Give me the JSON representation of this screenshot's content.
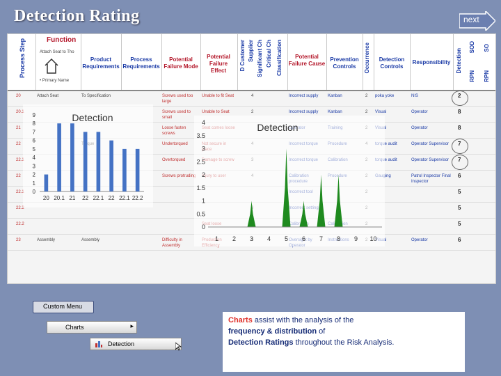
{
  "page": {
    "title": "Detection Rating",
    "next_label": "next"
  },
  "header": {
    "process_step": "Process Step",
    "function": "Function",
    "product_requirements": "Product Requirements",
    "process_requirements": "Process Requirements",
    "potential_failure_mode": "Potential Failure Mode",
    "potential_failure_effect": "Potential Failure Effect",
    "d_customer": "D Customer",
    "supplier": "Supplier",
    "significant_ch": "Significant Ch",
    "critical_ch": "Critical Ch",
    "classification": "Classification",
    "potential_failure_cause": "Potential Failure Cause",
    "prevention_controls": "Prevention Controls",
    "occurrence": "Occurrence",
    "detection_controls": "Detection Controls",
    "responsibility": "Responsibility",
    "detection": "Detection",
    "rpn": "RPN",
    "sod": "SOD",
    "so": "SO",
    "function_sample_text": "Attach Seat to Tho",
    "function_sample_sub": "• Primary Name"
  },
  "rows": [
    {
      "step": "20",
      "func": "Attach Seat",
      "fn2": "To Specification",
      "mode": "Screws used too large",
      "effect": "Unable to fit Seat",
      "sev": "4",
      "cause": "Incorrect supply",
      "prev": "Kanban",
      "occ": "2",
      "ctrl": "poka yoke",
      "resp": "NIS",
      "det": "2",
      "circled": true
    },
    {
      "step": "20.1",
      "func": "",
      "fn2": "",
      "mode": "Screws used to small",
      "effect": "Unable to Seat",
      "sev": "2",
      "cause": "Incorrect supply",
      "prev": "Kanban",
      "occ": "2",
      "ctrl": "Visual",
      "resp": "Operator",
      "det": "8",
      "circled": false
    },
    {
      "step": "21",
      "func": "",
      "fn2": "",
      "mode": "Loose fasten screws",
      "effect": "Seat comes loose",
      "sev": "",
      "cause": "Operator",
      "prev": "Training",
      "occ": "2",
      "ctrl": "Visual",
      "resp": "Operator",
      "det": "8",
      "circled": false
    },
    {
      "step": "22",
      "func": "",
      "fn2": "Torque",
      "mode": "Undertorqued",
      "effect": "Not secure in place",
      "sev": "4",
      "cause": "Incorrect torque",
      "prev": "Procedure",
      "occ": "4",
      "ctrl": "torque audit",
      "resp": "Operator Supervisor",
      "det": "7",
      "circled": true
    },
    {
      "step": "22.1",
      "func": "",
      "fn2": "",
      "mode": "Overtorqued",
      "effect": "Damage to screw",
      "sev": "3",
      "cause": "Incorrect torque",
      "prev": "Calibration",
      "occ": "2",
      "ctrl": "torque audit",
      "resp": "Operator Supervisor",
      "det": "7",
      "circled": true
    },
    {
      "step": "22",
      "func": "",
      "fn2": "",
      "mode": "Screws protruding",
      "effect": "Injury to user",
      "sev": "4",
      "cause": "Calibration procedure",
      "prev": "Procedure",
      "occ": "2",
      "ctrl": "Gauging",
      "resp": "Patrol Inspector Final Inspector",
      "det": "6",
      "circled": false
    },
    {
      "step": "22.1",
      "func": "",
      "fn2": "",
      "mode": "",
      "effect": "",
      "sev": "",
      "cause": "Incorrect tool",
      "prev": "",
      "occ": "2",
      "ctrl": "",
      "resp": "",
      "det": "5",
      "circled": false
    },
    {
      "step": "22.2",
      "func": "",
      "fn2": "",
      "mode": "",
      "effect": "",
      "sev": "3",
      "cause": "Incorrect setting",
      "prev": "",
      "occ": "2",
      "ctrl": "",
      "resp": "",
      "det": "5",
      "circled": false
    },
    {
      "step": "22.2",
      "func": "",
      "fn2": "",
      "mode": "",
      "effect": "Seat loose",
      "sev": "3",
      "cause": "Calibration",
      "prev": "Calibration",
      "occ": "2",
      "ctrl": "",
      "resp": "",
      "det": "5",
      "circled": false
    },
    {
      "step": "23",
      "func": "Assembly",
      "fn2": "Assembly",
      "mode": "Difficulty in Assembly",
      "effect": "Production Efficiency",
      "sev": "3",
      "cause": "Oversight by Operator",
      "prev": "Instructions",
      "occ": "2",
      "ctrl": "Visual",
      "resp": "Operator",
      "det": "6",
      "circled": false
    }
  ],
  "chart_left": {
    "title": "Detection",
    "yticks": [
      "0",
      "1",
      "2",
      "3",
      "4",
      "5",
      "6",
      "7",
      "8",
      "9"
    ],
    "xticks": [
      "20",
      "20.1",
      "21",
      "22",
      "22.1",
      "22",
      "22.1",
      "22.2"
    ]
  },
  "chart_right": {
    "title": "Detection",
    "yticks": [
      "0",
      "0.5",
      "1",
      "1.5",
      "2",
      "2.5",
      "3",
      "3.5",
      "4"
    ],
    "xticks": [
      "1",
      "2",
      "3",
      "4",
      "5",
      "6",
      "7",
      "8",
      "9",
      "10"
    ]
  },
  "chart_data": [
    {
      "type": "bar",
      "title": "Detection",
      "categories": [
        "20",
        "20.1",
        "21",
        "22",
        "22.1",
        "22",
        "22.1",
        "22.2"
      ],
      "series": [
        {
          "values": [
            2,
            8,
            8,
            7,
            7,
            6,
            5,
            5
          ]
        }
      ],
      "ylim": [
        0,
        9
      ]
    },
    {
      "type": "area",
      "title": "Detection",
      "x": [
        1,
        2,
        3,
        4,
        5,
        6,
        7,
        8,
        9,
        10
      ],
      "series": [
        {
          "values": [
            0,
            0,
            1,
            0,
            3,
            1,
            2,
            2,
            0,
            0
          ]
        }
      ],
      "ylim": [
        0,
        4
      ],
      "note": "narrow distribution peaks at integer ratings"
    }
  ],
  "menus": {
    "custom_menu": "Custom Menu",
    "charts": "Charts",
    "detection": "Detection"
  },
  "description": {
    "hl": "Charts",
    "t1": " assist with the analysis of the",
    "b1": "frequency & distribution",
    "t2": " of",
    "b2": "Detection Ratings",
    "t3": " throughout the Risk Analysis."
  },
  "colors": {
    "background": "#7e8fb4",
    "bar": "#4472c4",
    "area": "#1f8a1f",
    "header_text": "#1a3aa6"
  }
}
